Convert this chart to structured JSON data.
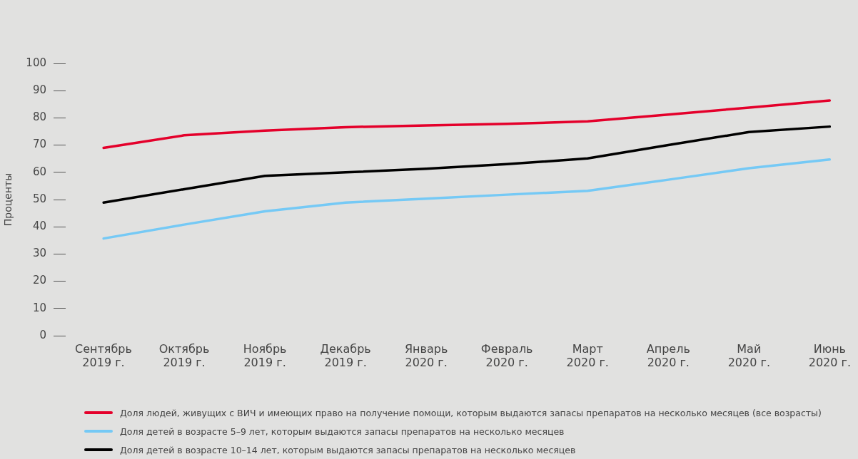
{
  "chart_data": {
    "type": "line",
    "ylabel": "Проценты",
    "categories": [
      "Сентябрь 2019 г.",
      "Октябрь 2019 г.",
      "Ноябрь 2019 г.",
      "Декабрь 2019 г.",
      "Январь 2020 г.",
      "Февраль 2020 г.",
      "Март 2020 г.",
      "Апрель 2020 г.",
      "Май 2020 г.",
      "Июнь 2020 г."
    ],
    "series": [
      {
        "name": "Доля людей, живущих с ВИЧ и имеющих право на получение помощи, которым выдаются запасы препаратов на несколько месяцев (все возрасты)",
        "color": "#e4002b",
        "values": [
          69.0,
          73.6,
          75.3,
          76.6,
          77.2,
          77.8,
          78.7,
          81.2,
          83.8,
          86.4
        ]
      },
      {
        "name": "Доля детей в возрасте 5–9 лет, которым выдаются запасы препаратов на несколько месяцев",
        "color": "#75c9f5",
        "values": [
          35.7,
          40.8,
          45.7,
          48.9,
          50.3,
          51.8,
          53.2,
          57.3,
          61.5,
          64.7
        ]
      },
      {
        "name": "Доля детей в возрасте 10–14 лет, которым выдаются запасы препаратов на несколько месяцев",
        "color": "#000000",
        "values": [
          48.9,
          53.8,
          58.7,
          60.0,
          61.3,
          63.0,
          65.1,
          70.0,
          74.8,
          76.8
        ]
      }
    ],
    "ylim": [
      0,
      100
    ],
    "yticks": [
      0,
      10,
      20,
      30,
      40,
      50,
      60,
      70,
      80,
      90,
      100
    ],
    "grid": false,
    "legend": "bottom",
    "marker": "none",
    "line_style": "solid"
  }
}
